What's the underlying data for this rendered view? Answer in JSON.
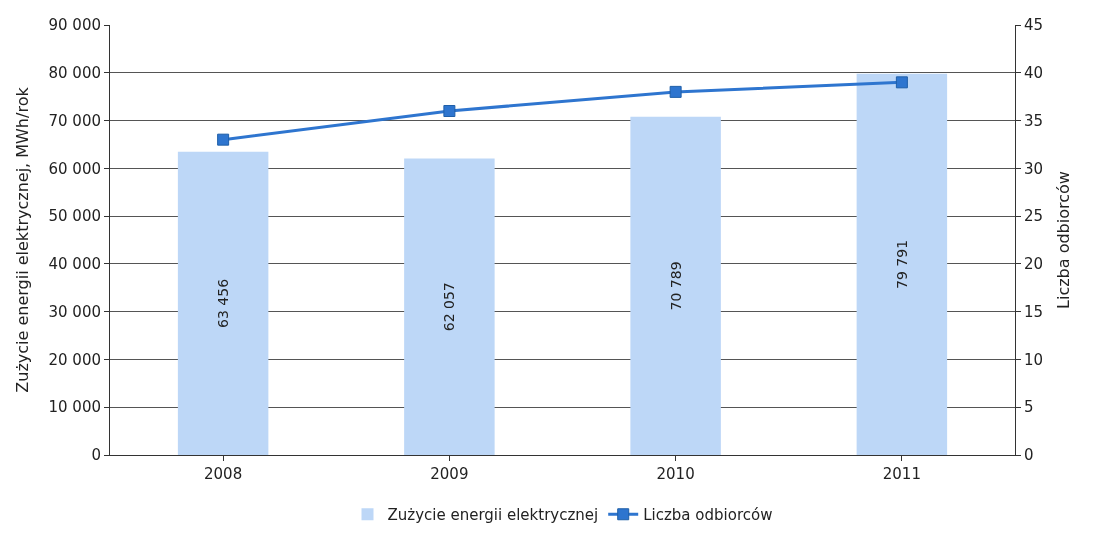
{
  "chart_data": {
    "type": "bar",
    "categories": [
      "2008",
      "2009",
      "2010",
      "2011"
    ],
    "ylabel": "Zużycie energii elektrycznej, MWh/rok",
    "y2label": "Liczba odbiorców",
    "series": [
      {
        "name": "Zużycie energii elektrycznej",
        "color": "#bdd7f7",
        "values": [
          63456,
          62057,
          70789,
          79791
        ],
        "value_labels": [
          "63 456",
          "62 057",
          "70 789",
          "79 791"
        ]
      },
      {
        "name": "Liczba odbiorców",
        "type": "line",
        "axis": "y2",
        "color": "#2e75cf",
        "marker": "square",
        "values": [
          33,
          36,
          38,
          39
        ]
      }
    ],
    "ylim": [
      0,
      90000
    ],
    "yticks": [
      {
        "value": 0,
        "label": "0"
      },
      {
        "value": 10000,
        "label": "10 000"
      },
      {
        "value": 20000,
        "label": "20 000"
      },
      {
        "value": 30000,
        "label": "30 000"
      },
      {
        "value": 40000,
        "label": "40 000"
      },
      {
        "value": 50000,
        "label": "50 000"
      },
      {
        "value": 60000,
        "label": "60 000"
      },
      {
        "value": 70000,
        "label": "70 000"
      },
      {
        "value": 80000,
        "label": "80 000"
      },
      {
        "value": 90000,
        "label": "90 000"
      }
    ],
    "y2lim": [
      0,
      45
    ],
    "y2ticks": [
      0,
      5,
      10,
      15,
      20,
      25,
      30,
      35,
      40,
      45
    ],
    "grid": "y",
    "legend": "bottom"
  }
}
